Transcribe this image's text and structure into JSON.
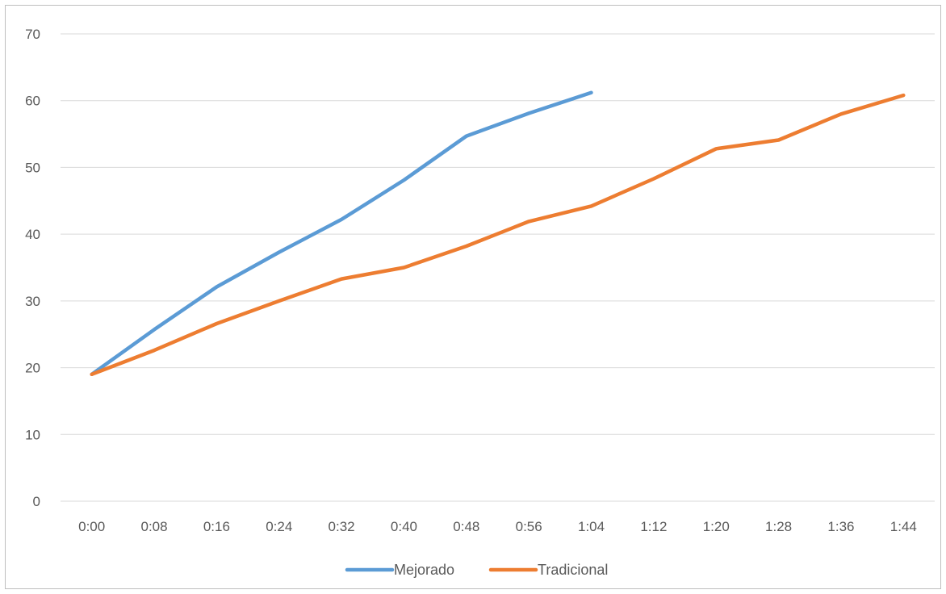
{
  "chart_data": {
    "type": "line",
    "title": "",
    "xlabel": "",
    "ylabel": "",
    "categories": [
      "0:00",
      "0:08",
      "0:16",
      "0:24",
      "0:32",
      "0:40",
      "0:48",
      "0:56",
      "1:04",
      "1:12",
      "1:20",
      "1:28",
      "1:36",
      "1:44"
    ],
    "ylim": [
      0,
      70
    ],
    "yticks": [
      0,
      10,
      20,
      30,
      40,
      50,
      60,
      70
    ],
    "grid": true,
    "legend_position": "bottom",
    "series": [
      {
        "name": "Mejorado",
        "color": "#5b9bd5",
        "values": [
          19,
          25.7,
          32.1,
          37.3,
          42.2,
          48.1,
          54.7,
          58.1,
          61.2,
          null,
          null,
          null,
          null,
          null
        ]
      },
      {
        "name": "Tradicional",
        "color": "#ed7d31",
        "values": [
          19,
          22.6,
          26.6,
          30.0,
          33.3,
          35.0,
          38.2,
          41.9,
          44.2,
          48.3,
          52.8,
          54.1,
          58.0,
          60.8
        ]
      }
    ]
  }
}
